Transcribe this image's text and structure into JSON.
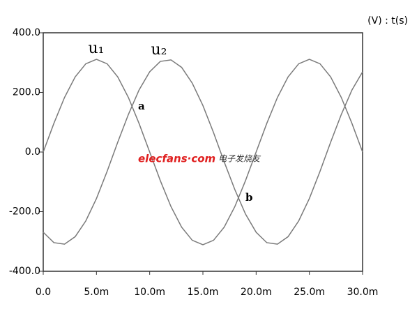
{
  "chart_data": {
    "type": "line",
    "axis_label": "(V) : t(s)",
    "x": [
      0,
      0.001,
      0.002,
      0.003,
      0.004,
      0.005,
      0.006,
      0.007,
      0.008,
      0.009,
      0.01,
      0.011,
      0.012,
      0.013,
      0.014,
      0.015,
      0.016,
      0.017,
      0.018,
      0.019,
      0.02,
      0.021,
      0.022,
      0.023,
      0.024,
      0.025,
      0.026,
      0.027,
      0.028,
      0.029,
      0.03
    ],
    "series": [
      {
        "name": "u₁",
        "color": "#7a7a7a",
        "values": [
          0,
          96,
          183,
          252,
          296,
          311,
          296,
          252,
          183,
          96,
          0,
          -96,
          -183,
          -252,
          -296,
          -311,
          -296,
          -252,
          -183,
          -96,
          0,
          96,
          183,
          252,
          296,
          311,
          296,
          252,
          183,
          96,
          0
        ]
      },
      {
        "name": "u₂",
        "color": "#7a7a7a",
        "values": [
          -269,
          -304,
          -309,
          -284,
          -231,
          -156,
          -65,
          33,
          126,
          208,
          269,
          304,
          309,
          284,
          231,
          156,
          65,
          -33,
          -126,
          -208,
          -269,
          -304,
          -309,
          -284,
          -231,
          -156,
          -65,
          33,
          126,
          208,
          269
        ]
      }
    ],
    "annotations": [
      "a",
      "b"
    ],
    "watermark": [
      "elecfans·com",
      "电子发烧友"
    ],
    "xlim": [
      0,
      0.03
    ],
    "xticks": [
      {
        "value": 0,
        "label": "0.0"
      },
      {
        "value": 0.005,
        "label": "5.0m"
      },
      {
        "value": 0.01,
        "label": "10.0m"
      },
      {
        "value": 0.015,
        "label": "15.0m"
      },
      {
        "value": 0.02,
        "label": "20.0m"
      },
      {
        "value": 0.025,
        "label": "25.0m"
      },
      {
        "value": 0.03,
        "label": "30.0m"
      }
    ],
    "ylim": [
      -400,
      400
    ],
    "yticks": [
      {
        "value": -400,
        "label": "-400.0"
      },
      {
        "value": -200,
        "label": "-200.0"
      },
      {
        "value": 0,
        "label": "0.0"
      },
      {
        "value": 200,
        "label": "200.0"
      },
      {
        "value": 400,
        "label": "400.0"
      }
    ],
    "grid": false
  }
}
